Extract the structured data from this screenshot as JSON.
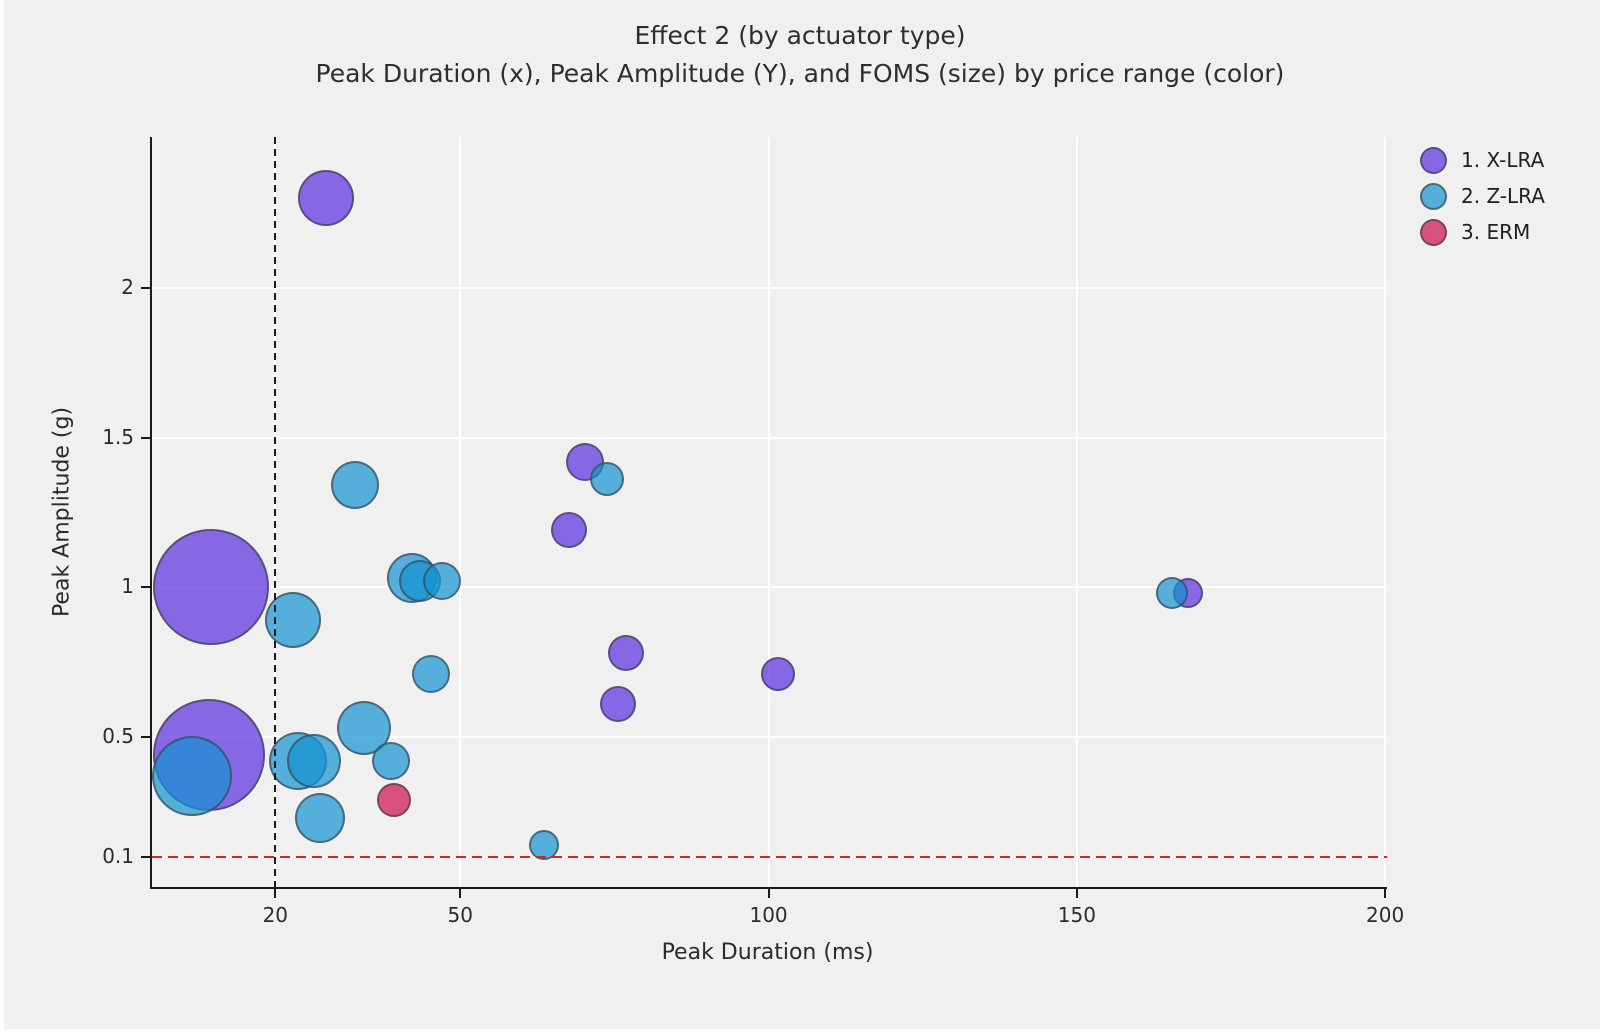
{
  "title": {
    "line1": "Effect 2 (by actuator type)",
    "line2": "Peak Duration (x), Peak Amplitude (Y), and FOMS (size) by price range (color)"
  },
  "colors": {
    "background": "#f0f0f0",
    "gridline": "#ffffff",
    "spine": "#1a1a1a",
    "vline_dashed": "#1c1c1c",
    "hline_dashed": "#e02020",
    "bubble_edge": "rgba(60,60,60,0.60)"
  },
  "chart_data": {
    "type": "scatter",
    "subtype": "bubble",
    "title": "Effect 2 (by actuator type)",
    "subtitle": "Peak Duration (x), Peak Amplitude (Y), and FOMS (size) by price range (color)",
    "xlabel": "Peak Duration (ms)",
    "ylabel": "Peak Amplitude (g)",
    "xlim": [
      0,
      200.3
    ],
    "ylim": [
      0,
      2.503
    ],
    "xticks": [
      20,
      50,
      100,
      150,
      200
    ],
    "yticks": [
      0.1,
      0.5,
      1,
      1.5,
      2
    ],
    "grid": "on",
    "size_encoding": "FOMS (bubble radius in px)",
    "reference_lines": [
      {
        "axis": "x",
        "value": 20,
        "style": "dashed",
        "color": "#1c1c1c"
      },
      {
        "axis": "y",
        "value": 0.1,
        "style": "dashed",
        "color": "#e02020"
      }
    ],
    "legend_position": "outside-top-right",
    "series": [
      {
        "name": "1. X-LRA",
        "color": "#8668E4",
        "fill": "rgba(89,46,223,0.7)",
        "points": [
          {
            "x": 28.3,
            "y": 2.3,
            "r": 28
          },
          {
            "x": 9.5,
            "y": 1.0,
            "r": 58
          },
          {
            "x": 9.2,
            "y": 0.44,
            "r": 56
          },
          {
            "x": 70.2,
            "y": 1.42,
            "r": 19
          },
          {
            "x": 67.6,
            "y": 1.19,
            "r": 18
          },
          {
            "x": 76.8,
            "y": 0.78,
            "r": 18
          },
          {
            "x": 75.6,
            "y": 0.61,
            "r": 18
          },
          {
            "x": 101.5,
            "y": 0.71,
            "r": 17
          },
          {
            "x": 168.0,
            "y": 0.98,
            "r": 15
          }
        ]
      },
      {
        "name": "2. Z-LRA",
        "color": "#56AEDB",
        "fill": "rgba(20,146,210,0.7)",
        "points": [
          {
            "x": 33.0,
            "y": 1.34,
            "r": 24
          },
          {
            "x": 73.8,
            "y": 1.36,
            "r": 17
          },
          {
            "x": 22.8,
            "y": 0.89,
            "r": 28
          },
          {
            "x": 42.2,
            "y": 1.03,
            "r": 25
          },
          {
            "x": 43.5,
            "y": 1.02,
            "r": 21
          },
          {
            "x": 47.1,
            "y": 1.02,
            "r": 19
          },
          {
            "x": 45.2,
            "y": 0.71,
            "r": 19
          },
          {
            "x": 34.4,
            "y": 0.53,
            "r": 27
          },
          {
            "x": 23.6,
            "y": 0.42,
            "r": 29
          },
          {
            "x": 26.3,
            "y": 0.42,
            "r": 27
          },
          {
            "x": 38.7,
            "y": 0.42,
            "r": 19
          },
          {
            "x": 27.3,
            "y": 0.23,
            "r": 25
          },
          {
            "x": 6.5,
            "y": 0.37,
            "r": 40
          },
          {
            "x": 63.5,
            "y": 0.14,
            "r": 15
          },
          {
            "x": 165.4,
            "y": 0.98,
            "r": 16
          }
        ]
      },
      {
        "name": "3. ERM",
        "color": "#D8517E",
        "fill": "rgba(206,13,77,0.7)",
        "points": [
          {
            "x": 39.3,
            "y": 0.29,
            "r": 17
          }
        ]
      }
    ]
  },
  "legend": {
    "items": [
      {
        "label": "1. X-LRA",
        "color": "#8668E4",
        "fill": "rgba(89,46,223,0.7)"
      },
      {
        "label": "2. Z-LRA",
        "color": "#56AEDB",
        "fill": "rgba(20,146,210,0.7)"
      },
      {
        "label": "3. ERM",
        "color": "#D8517E",
        "fill": "rgba(206,13,77,0.7)"
      }
    ]
  },
  "axes": {
    "x_label": "Peak Duration (ms)",
    "y_label": "Peak Amplitude (g)"
  }
}
